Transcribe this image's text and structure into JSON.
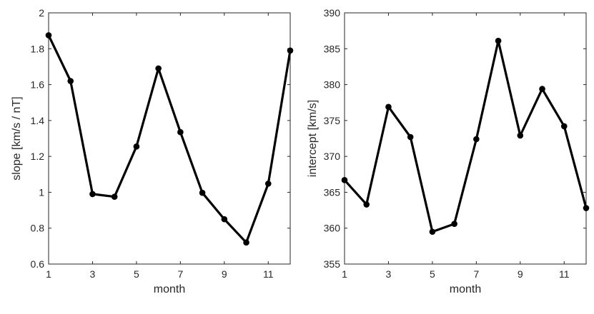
{
  "chart_data": [
    {
      "type": "line",
      "xlabel": "month",
      "ylabel": "slope [km/s / nT]",
      "xlim": [
        1,
        12
      ],
      "ylim": [
        0.6,
        2
      ],
      "xticks": [
        1,
        3,
        5,
        7,
        9,
        11
      ],
      "xtick_labels": [
        "1",
        "3",
        "5",
        "7",
        "9",
        "11"
      ],
      "yticks": [
        0.6,
        0.8,
        1,
        1.2,
        1.4,
        1.6,
        1.8,
        2
      ],
      "ytick_labels": [
        "0.6",
        "0.8",
        "1",
        "1.2",
        "1.4",
        "1.6",
        "1.8",
        "2"
      ],
      "grid": false,
      "line_color": "#000000",
      "x": [
        1,
        2,
        3,
        4,
        5,
        6,
        7,
        8,
        9,
        10,
        11,
        12
      ],
      "values": [
        1.875,
        1.62,
        0.99,
        0.975,
        1.255,
        1.69,
        1.335,
        0.997,
        0.85,
        0.72,
        1.048,
        1.79
      ]
    },
    {
      "type": "line",
      "xlabel": "month",
      "ylabel": "intercept [km/s]",
      "xlim": [
        1,
        12
      ],
      "ylim": [
        355,
        390
      ],
      "xticks": [
        1,
        3,
        5,
        7,
        9,
        11
      ],
      "xtick_labels": [
        "1",
        "3",
        "5",
        "7",
        "9",
        "11"
      ],
      "yticks": [
        355,
        360,
        365,
        370,
        375,
        380,
        385,
        390
      ],
      "ytick_labels": [
        "355",
        "360",
        "365",
        "370",
        "375",
        "380",
        "385",
        "390"
      ],
      "grid": false,
      "line_color": "#000000",
      "x": [
        1,
        2,
        3,
        4,
        5,
        6,
        7,
        8,
        9,
        10,
        11,
        12
      ],
      "values": [
        366.7,
        363.3,
        376.9,
        372.7,
        359.5,
        360.6,
        372.4,
        386.1,
        372.9,
        379.4,
        374.2,
        362.8
      ]
    }
  ]
}
